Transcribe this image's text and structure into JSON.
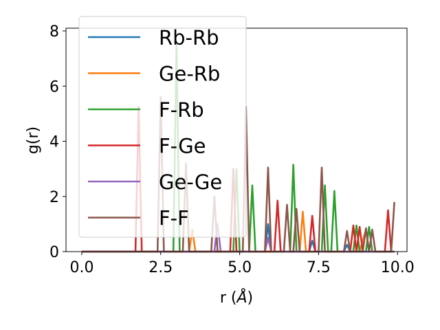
{
  "chart_data": {
    "type": "line",
    "xlabel_main": "r (",
    "xlabel_symbol": "Å",
    "xlabel_end": ")",
    "ylabel": "g(r)",
    "xlim": [
      -0.5,
      10.3
    ],
    "ylim": [
      0,
      8.1
    ],
    "xticks": [
      0.0,
      2.5,
      5.0,
      7.5,
      10.0
    ],
    "xtick_labels": [
      "0.0",
      "2.5",
      "5.0",
      "7.5",
      "10.0"
    ],
    "yticks": [
      0,
      2,
      4,
      6,
      8
    ],
    "ytick_labels": [
      "0",
      "2",
      "4",
      "6",
      "8"
    ],
    "legend_position": "upper-left",
    "series": [
      {
        "name": "Rb-Rb",
        "color": "#1f77b4",
        "points": [
          [
            0,
            0
          ],
          [
            5.8,
            0
          ],
          [
            5.9,
            1.0
          ],
          [
            6.0,
            0
          ],
          [
            7.2,
            0
          ],
          [
            7.3,
            0.4
          ],
          [
            7.4,
            0
          ],
          [
            8.3,
            0
          ],
          [
            8.4,
            0.25
          ],
          [
            8.5,
            0
          ],
          [
            9.9,
            0
          ]
        ]
      },
      {
        "name": "Ge-Rb",
        "color": "#ff7f0e",
        "points": [
          [
            0,
            0
          ],
          [
            3.4,
            0
          ],
          [
            3.5,
            0.8
          ],
          [
            3.6,
            0
          ],
          [
            6.9,
            0
          ],
          [
            7.0,
            1.45
          ],
          [
            7.1,
            0
          ],
          [
            8.6,
            0
          ],
          [
            8.7,
            0.9
          ],
          [
            8.8,
            0
          ],
          [
            9.0,
            0.8
          ],
          [
            9.1,
            0
          ],
          [
            9.9,
            0
          ]
        ]
      },
      {
        "name": "F-Rb",
        "color": "#2ca02c",
        "points": [
          [
            0,
            0
          ],
          [
            2.9,
            0
          ],
          [
            3.0,
            7.6
          ],
          [
            3.1,
            0
          ],
          [
            4.8,
            0
          ],
          [
            4.9,
            3.0
          ],
          [
            5.0,
            0
          ],
          [
            5.3,
            0
          ],
          [
            5.4,
            2.4
          ],
          [
            5.5,
            0
          ],
          [
            6.6,
            0
          ],
          [
            6.7,
            3.15
          ],
          [
            6.8,
            0
          ],
          [
            7.6,
            0
          ],
          [
            7.7,
            2.4
          ],
          [
            7.8,
            0
          ],
          [
            7.9,
            0
          ],
          [
            8.0,
            2.2
          ],
          [
            8.1,
            0
          ],
          [
            8.6,
            0
          ],
          [
            8.7,
            0.95
          ],
          [
            8.8,
            0
          ],
          [
            9.0,
            0
          ],
          [
            9.1,
            0.9
          ],
          [
            9.2,
            0
          ],
          [
            9.9,
            0
          ]
        ]
      },
      {
        "name": "F-Ge",
        "color": "#d62728",
        "points": [
          [
            0,
            0
          ],
          [
            1.7,
            0
          ],
          [
            1.8,
            5.25
          ],
          [
            1.9,
            0
          ],
          [
            4.7,
            0
          ],
          [
            4.8,
            3.0
          ],
          [
            4.9,
            0
          ],
          [
            6.1,
            0
          ],
          [
            6.2,
            1.85
          ],
          [
            6.3,
            0
          ],
          [
            7.2,
            0
          ],
          [
            7.3,
            1.3
          ],
          [
            7.4,
            0
          ],
          [
            8.5,
            0
          ],
          [
            8.6,
            0.95
          ],
          [
            8.7,
            0
          ],
          [
            8.8,
            0.9
          ],
          [
            8.9,
            0
          ],
          [
            9.6,
            0
          ],
          [
            9.7,
            1.5
          ],
          [
            9.8,
            0
          ],
          [
            9.9,
            0
          ]
        ]
      },
      {
        "name": "Ge-Ge",
        "color": "#9467bd",
        "points": [
          [
            0,
            0
          ],
          [
            4.2,
            0
          ],
          [
            4.3,
            1.0
          ],
          [
            4.4,
            0
          ],
          [
            5.8,
            0
          ],
          [
            5.9,
            0.5
          ],
          [
            6.0,
            0
          ],
          [
            9.9,
            0
          ]
        ]
      },
      {
        "name": "F-F",
        "color": "#8c564b",
        "points": [
          [
            0,
            0
          ],
          [
            2.4,
            0
          ],
          [
            2.5,
            5.6
          ],
          [
            2.6,
            0
          ],
          [
            3.2,
            0
          ],
          [
            3.3,
            3.2
          ],
          [
            3.4,
            0
          ],
          [
            4.1,
            0
          ],
          [
            4.2,
            2.0
          ],
          [
            4.3,
            0
          ],
          [
            5.1,
            0
          ],
          [
            5.2,
            5.25
          ],
          [
            5.3,
            0
          ],
          [
            5.8,
            0
          ],
          [
            5.9,
            3.05
          ],
          [
            6.0,
            0
          ],
          [
            6.4,
            0
          ],
          [
            6.5,
            1.7
          ],
          [
            6.6,
            0
          ],
          [
            6.7,
            0
          ],
          [
            6.8,
            1.55
          ],
          [
            6.9,
            0
          ],
          [
            7.5,
            0
          ],
          [
            7.6,
            3.05
          ],
          [
            7.7,
            0
          ],
          [
            8.3,
            0
          ],
          [
            8.4,
            0.75
          ],
          [
            8.5,
            0
          ],
          [
            8.9,
            0
          ],
          [
            9.0,
            0.85
          ],
          [
            9.1,
            0
          ],
          [
            9.2,
            0.8
          ],
          [
            9.3,
            0
          ],
          [
            9.8,
            0
          ],
          [
            9.9,
            1.8
          ]
        ]
      }
    ]
  }
}
